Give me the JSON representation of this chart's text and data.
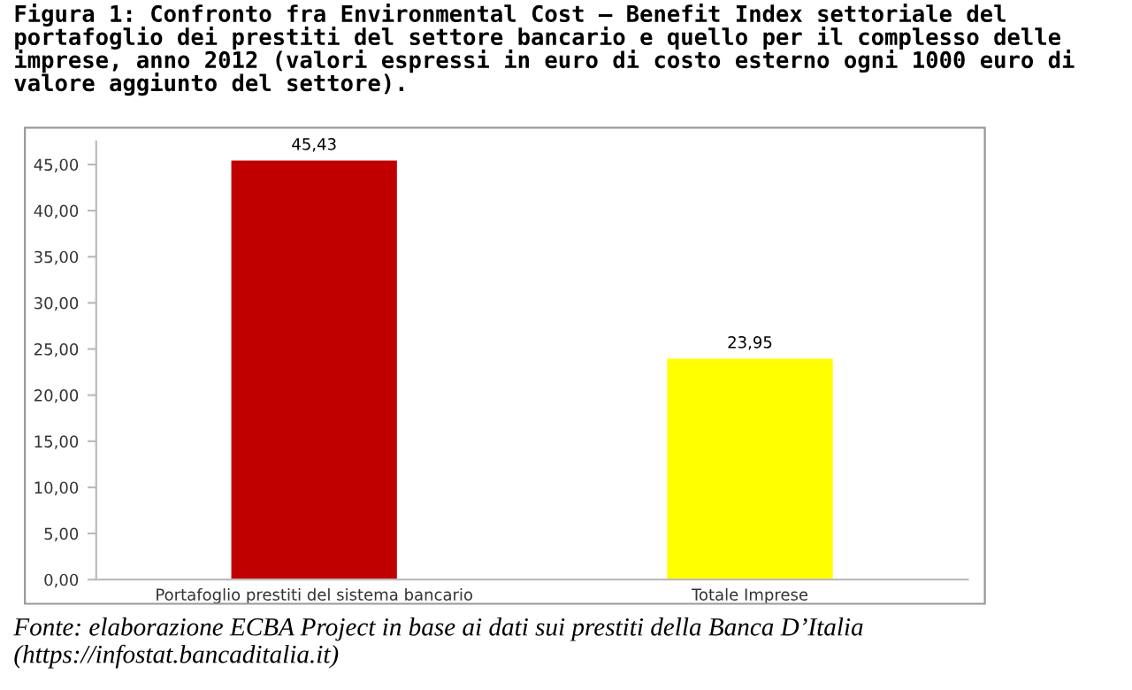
{
  "chart_data": {
    "type": "bar",
    "title": "Figura 1: Confronto fra Environmental Cost – Benefit Index settoriale del portafoglio dei prestiti del settore bancario e quello per il complesso delle imprese, anno 2012 (valori espressi in euro di costo esterno ogni 1000 euro di valore aggiunto del settore).",
    "categories": [
      "Portafoglio prestiti del sistema bancario",
      "Totale Imprese"
    ],
    "values": [
      45.43,
      23.95
    ],
    "colors": [
      "#c00000",
      "#ffff00"
    ],
    "value_labels": [
      "45,43",
      "23,95"
    ],
    "ylim": [
      0,
      47.5
    ],
    "yticks": [
      {
        "value": 0,
        "label": "0,00"
      },
      {
        "value": 5,
        "label": "5,00"
      },
      {
        "value": 10,
        "label": "10,00"
      },
      {
        "value": 15,
        "label": "15,00"
      },
      {
        "value": 20,
        "label": "20,00"
      },
      {
        "value": 25,
        "label": "25,00"
      },
      {
        "value": 30,
        "label": "30,00"
      },
      {
        "value": 35,
        "label": "35,00"
      },
      {
        "value": 40,
        "label": "40,00"
      },
      {
        "value": 45,
        "label": "45,00"
      }
    ],
    "grid": false,
    "annotations": [
      "Fonte: elaborazione ECBA Project in base ai dati sui prestiti della Banca D’Italia (https://infostat.bancaditalia.it)"
    ]
  }
}
